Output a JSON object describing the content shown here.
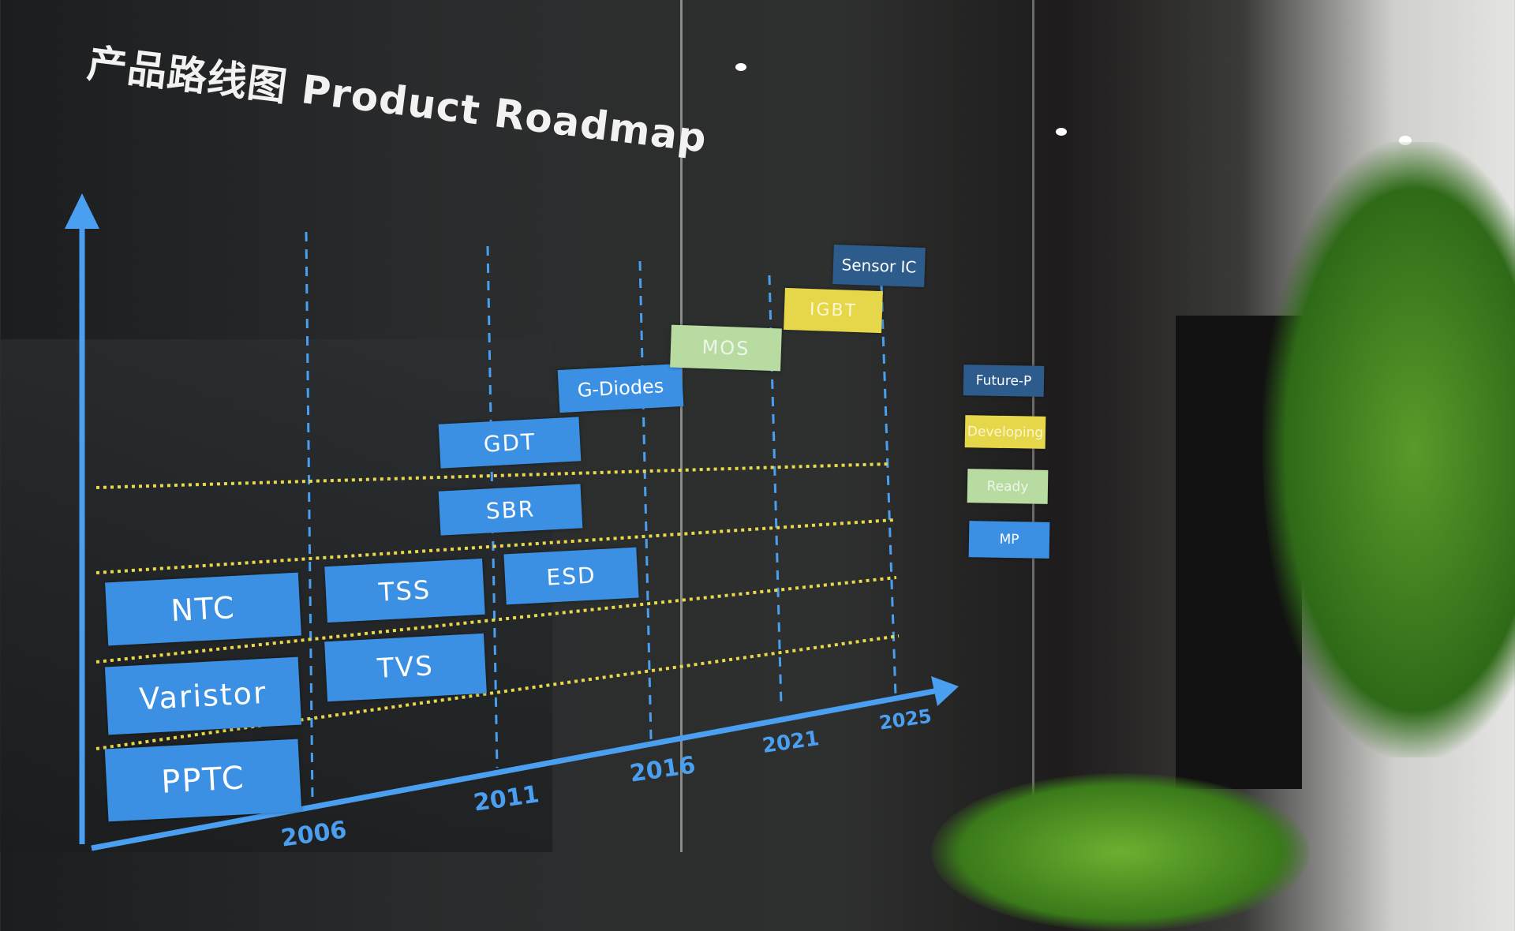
{
  "title": "产品路线图 Product Roadmap",
  "colors": {
    "mp": "#3b90e3",
    "ready": "#b7dba0",
    "developing": "#e6d64a",
    "future": "#2d5c8c",
    "axis": "#4a9ff0",
    "grid": "#e8d84a"
  },
  "years": [
    "2006",
    "2011",
    "2016",
    "2021",
    "2025"
  ],
  "products": [
    {
      "label": "PPTC",
      "status": "MP"
    },
    {
      "label": "Varistor",
      "status": "MP"
    },
    {
      "label": "NTC",
      "status": "MP"
    },
    {
      "label": "TSS",
      "status": "MP"
    },
    {
      "label": "TVS",
      "status": "MP"
    },
    {
      "label": "ESD",
      "status": "MP"
    },
    {
      "label": "SBR",
      "status": "MP"
    },
    {
      "label": "GDT",
      "status": "MP"
    },
    {
      "label": "G-Diodes",
      "status": "MP"
    },
    {
      "label": "MOS",
      "status": "Ready"
    },
    {
      "label": "IGBT",
      "status": "Developing"
    },
    {
      "label": "Sensor IC",
      "status": "Future-P"
    }
  ],
  "legend": [
    "Future-P",
    "Developing",
    "Ready",
    "MP"
  ]
}
